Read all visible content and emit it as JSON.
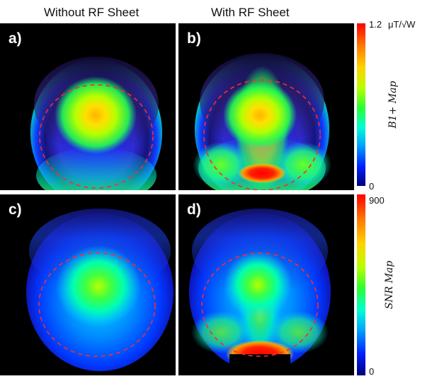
{
  "column_titles": [
    "Without RF Sheet",
    "With RF Sheet"
  ],
  "panels": [
    {
      "label": "a)"
    },
    {
      "label": "b)"
    },
    {
      "label": "c)"
    },
    {
      "label": "d)"
    }
  ],
  "colorbars": {
    "top": {
      "max_label": "1.2",
      "unit": "μT/√W",
      "min_label": "0",
      "title": "B1+ Map"
    },
    "bottom": {
      "max_label": "900",
      "min_label": "0",
      "title": "SNR Map"
    }
  },
  "colors": {
    "circle_dash": "#ff2a2a",
    "background": "#000000"
  }
}
